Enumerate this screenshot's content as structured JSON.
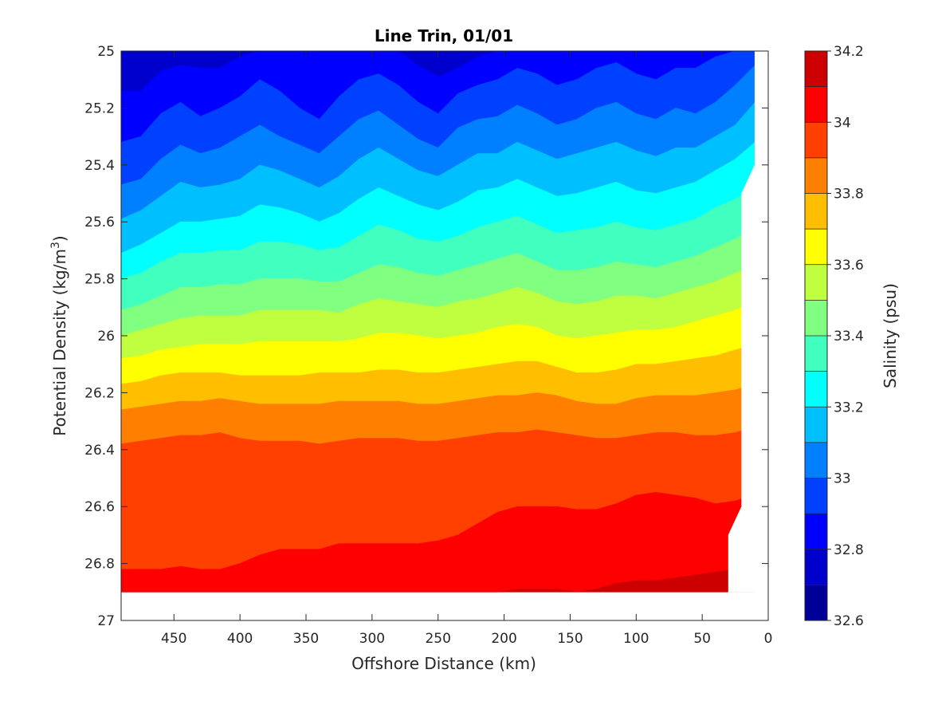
{
  "chart_data": {
    "type": "contourf",
    "title": "Line Trin, 01/01",
    "xlabel": "Offshore Distance (km)",
    "ylabel": "Potential Density (kg/m3)",
    "ylabel_parts": {
      "base": "Potential Density (kg/m",
      "sup": "3",
      "close": ")"
    },
    "x_axis_reversed": true,
    "y_axis_reversed": true,
    "xlim": [
      0,
      490
    ],
    "ylim": [
      25,
      27
    ],
    "xticks": [
      450,
      400,
      350,
      300,
      250,
      200,
      150,
      100,
      50,
      0
    ],
    "xtick_labels": [
      "450",
      "400",
      "350",
      "300",
      "250",
      "200",
      "150",
      "100",
      "50",
      "0"
    ],
    "yticks": [
      25,
      25.2,
      25.4,
      25.6,
      25.8,
      26,
      26.2,
      26.4,
      26.6,
      26.8,
      27
    ],
    "ytick_labels": [
      "25",
      "25.2",
      "25.4",
      "25.6",
      "25.8",
      "26",
      "26.2",
      "26.4",
      "26.6",
      "26.8",
      "27"
    ],
    "colorbar": {
      "label": "Salinity (psu)",
      "limits": [
        32.6,
        34.2
      ],
      "ticks": [
        32.6,
        32.8,
        33,
        33.2,
        33.4,
        33.6,
        33.8,
        34,
        34.2
      ],
      "tick_labels": [
        "32.6",
        "32.8",
        "33",
        "33.2",
        "33.4",
        "33.6",
        "33.8",
        "34",
        "34.2"
      ],
      "levels": [
        32.6,
        32.7,
        32.8,
        32.9,
        33.0,
        33.1,
        33.2,
        33.3,
        33.4,
        33.5,
        33.6,
        33.7,
        33.8,
        33.9,
        34.0,
        34.1,
        34.2
      ],
      "colormap": [
        "#000099",
        "#0000cc",
        "#0000ff",
        "#0040ff",
        "#0080ff",
        "#00bfff",
        "#00ffff",
        "#40ffbf",
        "#80ff80",
        "#bfff40",
        "#ffff00",
        "#ffbf00",
        "#ff8000",
        "#ff4000",
        "#ff0000",
        "#cc0000"
      ]
    },
    "data_extent": {
      "x_range": [
        10,
        490
      ],
      "density_top": 25,
      "density_bottom": 26.9,
      "right_edge_profile": [
        {
          "density": 25.0,
          "x": 10
        },
        {
          "density": 25.4,
          "x": 10
        },
        {
          "density": 25.5,
          "x": 20
        },
        {
          "density": 26.6,
          "x": 20
        },
        {
          "density": 26.7,
          "x": 30
        },
        {
          "density": 26.9,
          "x": 30
        }
      ]
    },
    "x_stations": [
      490,
      475,
      460,
      445,
      430,
      415,
      400,
      385,
      370,
      355,
      340,
      325,
      310,
      295,
      280,
      265,
      250,
      235,
      220,
      205,
      190,
      175,
      160,
      145,
      130,
      115,
      100,
      85,
      70,
      55,
      40,
      25,
      10
    ],
    "isohalines": [
      {
        "level": 32.8,
        "density": [
          25.14,
          25.14,
          25.07,
          25.05,
          25.06,
          25.06,
          25.02,
          25.0,
          25.0,
          25.0,
          25.0,
          25.0,
          25.0,
          25.0,
          25.0,
          25.05,
          25.09,
          25.06,
          25.02,
          25.0,
          25.0,
          25.0,
          25.0,
          25.0,
          25.0,
          25.0,
          25.0,
          25.0,
          25.0,
          25.0,
          25.0,
          25.0,
          25.0
        ]
      },
      {
        "level": 32.9,
        "density": [
          25.32,
          25.3,
          25.22,
          25.18,
          25.23,
          25.2,
          25.16,
          25.1,
          25.14,
          25.2,
          25.24,
          25.16,
          25.1,
          25.08,
          25.12,
          25.18,
          25.22,
          25.15,
          25.12,
          25.1,
          25.06,
          25.08,
          25.12,
          25.1,
          25.06,
          25.04,
          25.08,
          25.1,
          25.06,
          25.06,
          25.02,
          25.0,
          25.0
        ]
      },
      {
        "level": 33.0,
        "density": [
          25.47,
          25.45,
          25.38,
          25.33,
          25.36,
          25.34,
          25.3,
          25.26,
          25.3,
          25.33,
          25.36,
          25.3,
          25.24,
          25.21,
          25.26,
          25.31,
          25.34,
          25.27,
          25.24,
          25.23,
          25.19,
          25.22,
          25.26,
          25.24,
          25.2,
          25.18,
          25.22,
          25.24,
          25.2,
          25.22,
          25.18,
          25.12,
          25.05
        ]
      },
      {
        "level": 33.1,
        "density": [
          25.59,
          25.56,
          25.51,
          25.46,
          25.48,
          25.47,
          25.45,
          25.4,
          25.42,
          25.45,
          25.48,
          25.44,
          25.38,
          25.34,
          25.38,
          25.42,
          25.44,
          25.4,
          25.36,
          25.36,
          25.32,
          25.35,
          25.38,
          25.36,
          25.34,
          25.32,
          25.35,
          25.37,
          25.34,
          25.34,
          25.3,
          25.26,
          25.18
        ]
      },
      {
        "level": 33.2,
        "density": [
          25.71,
          25.68,
          25.64,
          25.6,
          25.6,
          25.59,
          25.58,
          25.54,
          25.55,
          25.57,
          25.6,
          25.57,
          25.52,
          25.48,
          25.51,
          25.54,
          25.56,
          25.53,
          25.49,
          25.48,
          25.45,
          25.48,
          25.51,
          25.5,
          25.48,
          25.46,
          25.49,
          25.5,
          25.48,
          25.46,
          25.42,
          25.38,
          25.32
        ]
      },
      {
        "level": 33.3,
        "density": [
          25.8,
          25.78,
          25.74,
          25.71,
          25.71,
          25.7,
          25.7,
          25.67,
          25.67,
          25.68,
          25.7,
          25.69,
          25.65,
          25.61,
          25.63,
          25.66,
          25.67,
          25.65,
          25.62,
          25.6,
          25.58,
          25.61,
          25.64,
          25.63,
          25.62,
          25.6,
          25.62,
          25.63,
          25.61,
          25.59,
          25.55,
          25.52,
          25.48
        ]
      },
      {
        "level": 33.4,
        "density": [
          25.91,
          25.89,
          25.86,
          25.83,
          25.83,
          25.82,
          25.82,
          25.8,
          25.8,
          25.8,
          25.81,
          25.81,
          25.78,
          25.75,
          25.76,
          25.78,
          25.79,
          25.77,
          25.75,
          25.73,
          25.71,
          25.74,
          25.77,
          25.77,
          25.76,
          25.74,
          25.75,
          25.76,
          25.74,
          25.72,
          25.69,
          25.66,
          25.62
        ]
      },
      {
        "level": 33.5,
        "density": [
          26.0,
          25.98,
          25.96,
          25.94,
          25.93,
          25.93,
          25.93,
          25.91,
          25.91,
          25.91,
          25.91,
          25.92,
          25.89,
          25.87,
          25.88,
          25.89,
          25.9,
          25.88,
          25.87,
          25.85,
          25.83,
          25.85,
          25.88,
          25.89,
          25.88,
          25.86,
          25.86,
          25.87,
          25.85,
          25.83,
          25.81,
          25.78,
          25.75
        ]
      },
      {
        "level": 33.6,
        "density": [
          26.08,
          26.07,
          26.05,
          26.04,
          26.03,
          26.03,
          26.03,
          26.02,
          26.02,
          26.02,
          26.02,
          26.02,
          26.01,
          25.99,
          25.99,
          26.0,
          26.01,
          26.0,
          25.99,
          25.97,
          25.96,
          25.97,
          26.0,
          26.01,
          26.0,
          25.99,
          25.98,
          25.98,
          25.97,
          25.95,
          25.93,
          25.91,
          25.88
        ]
      },
      {
        "level": 33.7,
        "density": [
          26.17,
          26.16,
          26.14,
          26.13,
          26.13,
          26.13,
          26.14,
          26.14,
          26.14,
          26.14,
          26.13,
          26.13,
          26.13,
          26.12,
          26.12,
          26.13,
          26.13,
          26.12,
          26.11,
          26.1,
          26.09,
          26.09,
          26.11,
          26.13,
          26.13,
          26.12,
          26.1,
          26.1,
          26.09,
          26.08,
          26.07,
          26.05,
          26.03
        ]
      },
      {
        "level": 33.8,
        "density": [
          26.26,
          26.25,
          26.24,
          26.23,
          26.23,
          26.22,
          26.23,
          26.24,
          26.24,
          26.24,
          26.24,
          26.23,
          26.23,
          26.23,
          26.23,
          26.24,
          26.24,
          26.23,
          26.22,
          26.21,
          26.21,
          26.2,
          26.21,
          26.23,
          26.24,
          26.24,
          26.22,
          26.21,
          26.21,
          26.21,
          26.2,
          26.19,
          26.17
        ]
      },
      {
        "level": 33.9,
        "density": [
          26.38,
          26.37,
          26.36,
          26.35,
          26.35,
          26.34,
          26.36,
          26.37,
          26.37,
          26.37,
          26.38,
          26.37,
          26.36,
          26.36,
          26.36,
          26.37,
          26.37,
          26.36,
          26.35,
          26.34,
          26.34,
          26.33,
          26.34,
          26.35,
          26.36,
          26.36,
          26.35,
          26.34,
          26.34,
          26.35,
          26.35,
          26.34,
          26.32
        ]
      },
      {
        "level": 34.0,
        "density": [
          26.82,
          26.82,
          26.82,
          26.81,
          26.82,
          26.82,
          26.8,
          26.77,
          26.75,
          26.75,
          26.75,
          26.73,
          26.73,
          26.73,
          26.73,
          26.73,
          26.72,
          26.7,
          26.66,
          26.62,
          26.6,
          26.6,
          26.6,
          26.61,
          26.61,
          26.59,
          26.56,
          26.55,
          26.56,
          26.57,
          26.59,
          26.58,
          26.56
        ]
      },
      {
        "level": 34.1,
        "density": [
          26.95,
          26.95,
          26.95,
          26.95,
          26.95,
          26.95,
          26.95,
          26.95,
          26.95,
          26.95,
          26.95,
          26.95,
          26.95,
          26.95,
          26.95,
          26.95,
          26.95,
          26.95,
          26.95,
          26.95,
          26.89,
          26.89,
          26.89,
          26.9,
          26.89,
          26.87,
          26.86,
          26.86,
          26.85,
          26.84,
          26.83,
          26.82,
          26.82
        ]
      }
    ]
  }
}
